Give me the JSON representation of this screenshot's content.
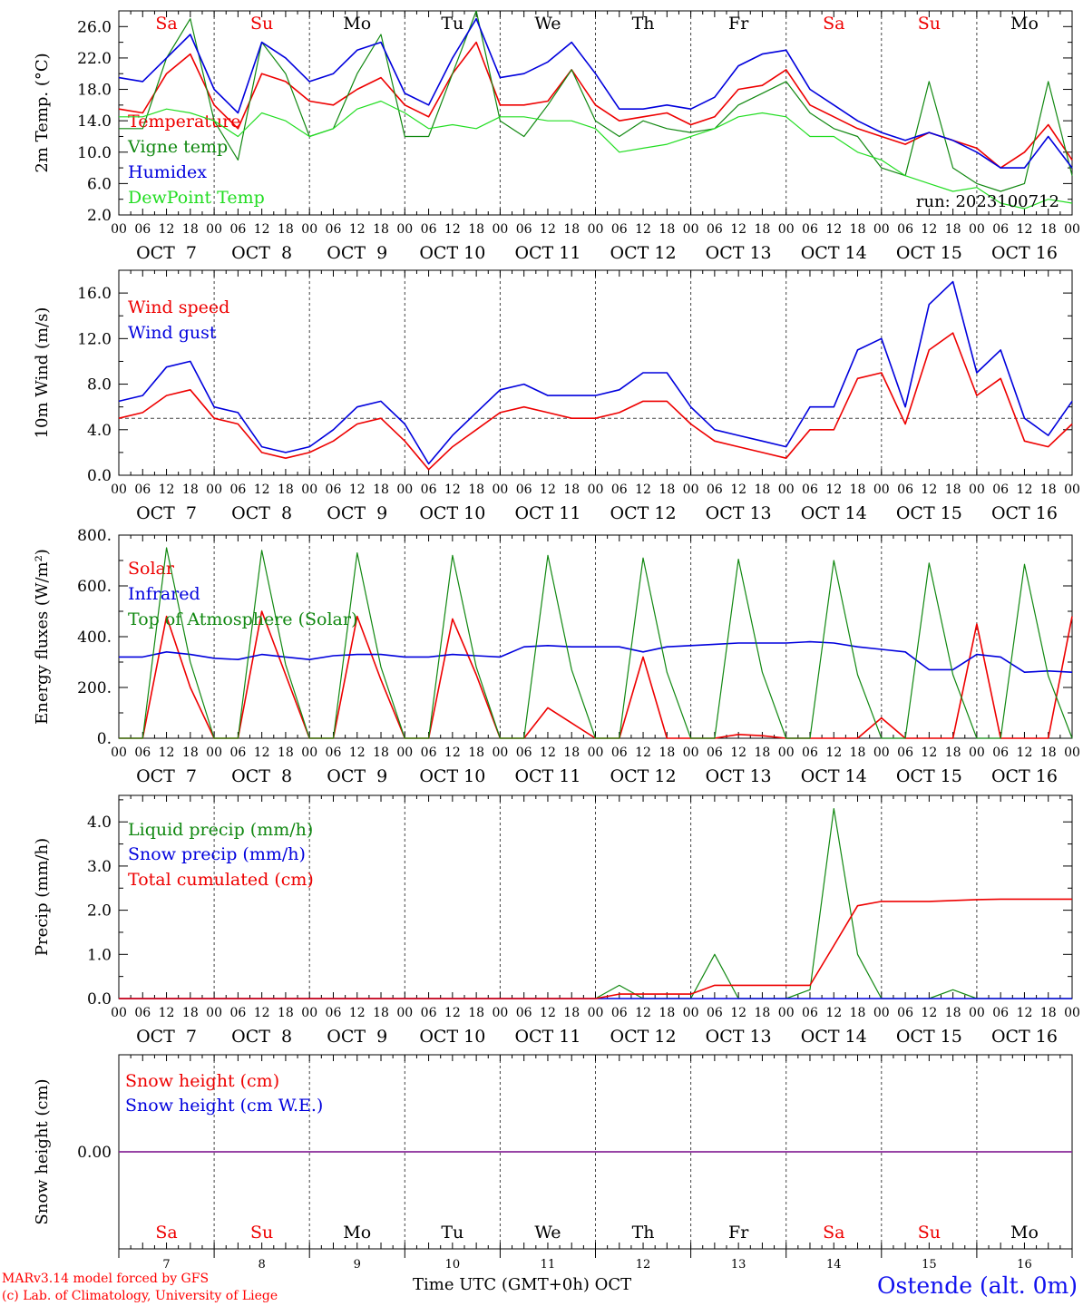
{
  "colors": {
    "red": "#ee0000",
    "green": "#118811",
    "blue": "#0000dd",
    "light_green": "#22dd22",
    "axis": "#000000"
  },
  "axis": {
    "hour_ticks": [
      "00",
      "06",
      "12",
      "18"
    ],
    "date_labels": [
      "OCT  7",
      "OCT  8",
      "OCT  9",
      "OCT 10",
      "OCT 11",
      "OCT 12",
      "OCT 13",
      "OCT 14",
      "OCT 15",
      "OCT 16"
    ],
    "day_numbers": [
      "7",
      "8",
      "9",
      "10",
      "11",
      "12",
      "13",
      "14",
      "15",
      "16"
    ],
    "weekdays": [
      "Sa",
      "Su",
      "Mo",
      "Tu",
      "We",
      "Th",
      "Fr",
      "Sa",
      "Su",
      "Mo"
    ],
    "weekend_flags": [
      true,
      true,
      false,
      false,
      false,
      false,
      false,
      true,
      true,
      false
    ],
    "x_title": "Time UTC (GMT+0h) OCT"
  },
  "footer": {
    "credit_line1": "MARv3.14 model forced by GFS",
    "credit_line2": "(c) Lab. of Climatology, University of Liege",
    "station": "Ostende (alt. 0m)"
  },
  "chart_data": [
    {
      "type": "line",
      "ylabel": "2m Temp. (°C)",
      "ylim": [
        2,
        28
      ],
      "yticks": [
        "2.0",
        "6.0",
        "10.0",
        "14.0",
        "18.0",
        "22.0",
        "26.0"
      ],
      "run_label": "run: 2023100712",
      "x_hours": [
        0,
        6,
        12,
        18,
        24,
        30,
        36,
        42,
        48,
        54,
        60,
        66,
        72,
        78,
        84,
        90,
        96,
        102,
        108,
        114,
        120,
        126,
        132,
        138,
        144,
        150,
        156,
        162,
        168,
        174,
        180,
        186,
        192,
        198,
        204,
        210,
        216,
        222,
        228,
        234,
        240
      ],
      "series": [
        {
          "name": "Temperature",
          "color": "red",
          "values": [
            15.5,
            15,
            20,
            22.5,
            16,
            13,
            20,
            19,
            16.5,
            16,
            18,
            19.5,
            16,
            14.5,
            20,
            24,
            16,
            16,
            16.5,
            20.5,
            16,
            14,
            14.5,
            15,
            13.5,
            14.5,
            18,
            18.5,
            20.5,
            16,
            14.5,
            13,
            12,
            11,
            12.5,
            11.5,
            10.5,
            8,
            10,
            13.5,
            9
          ]
        },
        {
          "name": "Vigne temp",
          "color": "green",
          "values": [
            13,
            13,
            22,
            27,
            14,
            9,
            24,
            20,
            12,
            13,
            20,
            25,
            12,
            12,
            20,
            28,
            14,
            12,
            16,
            20.5,
            14,
            12,
            14,
            13,
            12.5,
            13,
            16,
            17.5,
            19,
            15,
            13,
            12,
            8,
            7,
            19,
            8,
            6,
            5,
            6,
            19,
            7
          ]
        },
        {
          "name": "Humidex",
          "color": "blue",
          "values": [
            19.5,
            19,
            22,
            25,
            18,
            15,
            24,
            22,
            19,
            20,
            23,
            24,
            17.5,
            16,
            22,
            27,
            19.5,
            20,
            21.5,
            24,
            20,
            15.5,
            15.5,
            16,
            15.5,
            17,
            21,
            22.5,
            23,
            18,
            16,
            14,
            12.5,
            11.5,
            12.5,
            11.5,
            10,
            8,
            8,
            12,
            8
          ]
        },
        {
          "name": "DewPoint Temp",
          "color": "light_green",
          "values": [
            14.5,
            14.5,
            15.5,
            15,
            14,
            12,
            15,
            14,
            12,
            13,
            15.5,
            16.5,
            15,
            13,
            13.5,
            13,
            14.5,
            14.5,
            14,
            14,
            13,
            10,
            10.5,
            11,
            12,
            13,
            14.5,
            15,
            14.5,
            12,
            12,
            10,
            9,
            7,
            6,
            5,
            5.5,
            3.5,
            2.8,
            4,
            3.5
          ]
        }
      ]
    },
    {
      "type": "line",
      "ylabel": "10m Wind (m/s)",
      "ylim": [
        0,
        18
      ],
      "yticks": [
        "0.0",
        "4.0",
        "8.0",
        "12.0",
        "16.0"
      ],
      "reference_line": 5,
      "x_hours": [
        0,
        6,
        12,
        18,
        24,
        30,
        36,
        42,
        48,
        54,
        60,
        66,
        72,
        78,
        84,
        90,
        96,
        102,
        108,
        114,
        120,
        126,
        132,
        138,
        144,
        150,
        156,
        162,
        168,
        174,
        180,
        186,
        192,
        198,
        204,
        210,
        216,
        222,
        228,
        234,
        240
      ],
      "series": [
        {
          "name": "Wind speed",
          "color": "red",
          "values": [
            5,
            5.5,
            7,
            7.5,
            5,
            4.5,
            2,
            1.5,
            2,
            3,
            4.5,
            5,
            3,
            0.5,
            2.5,
            4,
            5.5,
            6,
            5.5,
            5,
            5,
            5.5,
            6.5,
            6.5,
            4.5,
            3,
            2.5,
            2,
            1.5,
            4,
            4,
            8.5,
            9,
            4.5,
            11,
            12.5,
            7,
            8.5,
            3,
            2.5,
            4.5
          ]
        },
        {
          "name": "Wind gust",
          "color": "blue",
          "values": [
            6.5,
            7,
            9.5,
            10,
            6,
            5.5,
            2.5,
            2,
            2.5,
            4,
            6,
            6.5,
            4.5,
            1,
            3.5,
            5.5,
            7.5,
            8,
            7,
            7,
            7,
            7.5,
            9,
            9,
            6,
            4,
            3.5,
            3,
            2.5,
            6,
            6,
            11,
            12,
            6,
            15,
            17,
            9,
            11,
            5,
            3.5,
            6.5
          ]
        }
      ]
    },
    {
      "type": "line",
      "ylabel": "Energy fluxes (W/m²)",
      "ylim": [
        0,
        800
      ],
      "yticks": [
        "0.",
        "200.",
        "400.",
        "600.",
        "800."
      ],
      "x_hours": [
        0,
        6,
        12,
        18,
        24,
        30,
        36,
        42,
        48,
        54,
        60,
        66,
        72,
        78,
        84,
        90,
        96,
        102,
        108,
        114,
        120,
        126,
        132,
        138,
        144,
        150,
        156,
        162,
        168,
        174,
        180,
        186,
        192,
        198,
        204,
        210,
        216,
        222,
        228,
        234,
        240
      ],
      "series": [
        {
          "name": "Solar",
          "color": "red",
          "values": [
            0,
            0,
            480,
            200,
            0,
            0,
            500,
            250,
            0,
            0,
            480,
            230,
            0,
            0,
            470,
            250,
            0,
            0,
            120,
            60,
            0,
            0,
            320,
            0,
            0,
            0,
            15,
            10,
            0,
            0,
            0,
            0,
            80,
            0,
            0,
            0,
            450,
            0,
            0,
            0,
            480
          ]
        },
        {
          "name": "Infrared",
          "color": "blue",
          "values": [
            320,
            320,
            340,
            330,
            315,
            310,
            330,
            320,
            310,
            325,
            330,
            330,
            320,
            320,
            330,
            325,
            320,
            360,
            365,
            360,
            360,
            360,
            340,
            360,
            365,
            370,
            375,
            375,
            375,
            380,
            375,
            360,
            350,
            340,
            270,
            270,
            330,
            320,
            260,
            265,
            260
          ]
        },
        {
          "name": "Top of Atmosphere (Solar)",
          "color": "green",
          "values": [
            0,
            0,
            750,
            300,
            0,
            0,
            740,
            290,
            0,
            0,
            730,
            280,
            0,
            0,
            720,
            280,
            0,
            0,
            720,
            270,
            0,
            0,
            710,
            260,
            0,
            0,
            705,
            260,
            0,
            0,
            700,
            250,
            0,
            0,
            690,
            250,
            0,
            0,
            685,
            245,
            0
          ]
        }
      ]
    },
    {
      "type": "line",
      "ylabel": "Precip (mm/h)",
      "ylim": [
        0,
        4.6
      ],
      "yticks": [
        "0.0",
        "1.0",
        "2.0",
        "3.0",
        "4.0"
      ],
      "x_hours": [
        0,
        6,
        12,
        18,
        24,
        30,
        36,
        42,
        48,
        54,
        60,
        66,
        72,
        78,
        84,
        90,
        96,
        102,
        108,
        114,
        120,
        126,
        132,
        138,
        144,
        150,
        156,
        162,
        168,
        174,
        180,
        186,
        192,
        198,
        204,
        210,
        216,
        222,
        228,
        234,
        240
      ],
      "series": [
        {
          "name": "Liquid precip (mm/h)",
          "color": "green",
          "values": [
            0,
            0,
            0,
            0,
            0,
            0,
            0,
            0,
            0,
            0,
            0,
            0,
            0,
            0,
            0,
            0,
            0,
            0,
            0,
            0,
            0,
            0.3,
            0,
            0,
            0,
            1.0,
            0,
            0,
            0,
            0.2,
            4.3,
            1.0,
            0,
            0,
            0,
            0.2,
            0,
            0,
            0,
            0,
            0
          ]
        },
        {
          "name": "Snow precip (mm/h)",
          "color": "blue",
          "values": [
            0,
            0,
            0,
            0,
            0,
            0,
            0,
            0,
            0,
            0,
            0,
            0,
            0,
            0,
            0,
            0,
            0,
            0,
            0,
            0,
            0,
            0,
            0,
            0,
            0,
            0,
            0,
            0,
            0,
            0,
            0,
            0,
            0,
            0,
            0,
            0,
            0,
            0,
            0,
            0,
            0
          ]
        },
        {
          "name": "Total cumulated (cm)",
          "color": "red",
          "values": [
            0,
            0,
            0,
            0,
            0,
            0,
            0,
            0,
            0,
            0,
            0,
            0,
            0,
            0,
            0,
            0,
            0,
            0,
            0,
            0,
            0,
            0.1,
            0.1,
            0.1,
            0.1,
            0.3,
            0.3,
            0.3,
            0.3,
            0.3,
            1.2,
            2.1,
            2.2,
            2.2,
            2.2,
            2.22,
            2.24,
            2.25,
            2.25,
            2.25,
            2.25
          ]
        }
      ]
    },
    {
      "type": "line",
      "ylabel": "Snow height (cm)",
      "ylim": [
        -1,
        1
      ],
      "yticks": [
        "0.00"
      ],
      "x_hours": [
        0,
        240
      ],
      "series": [
        {
          "name": "Snow height (cm)",
          "color": "red",
          "values": [
            0,
            0
          ]
        },
        {
          "name": "Snow height (cm W.E.)",
          "color": "blue",
          "values": [
            0,
            0
          ]
        }
      ]
    }
  ]
}
